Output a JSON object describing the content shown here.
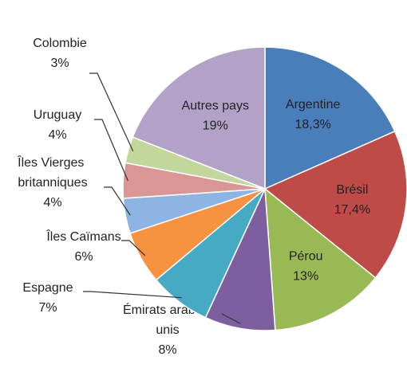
{
  "chart_data": {
    "type": "pie",
    "categories": [
      "Argentine",
      "Brésil",
      "Pérou",
      "Émirats arabes unis",
      "Espagne",
      "Îles Caïmans",
      "Îles Vierges britanniques",
      "Uruguay",
      "Colombie",
      "Autres pays"
    ],
    "values": [
      18.3,
      17.4,
      13,
      8,
      7,
      6,
      4,
      4,
      3,
      19
    ],
    "value_labels": [
      "18,3%",
      "17,4%",
      "13%",
      "8%",
      "7%",
      "6%",
      "4%",
      "4%",
      "3%",
      "19%"
    ],
    "colors": [
      "#4a7ebb",
      "#be4b48",
      "#98b954",
      "#7d5fa0",
      "#46aac5",
      "#f69240",
      "#8eb4e3",
      "#d99694",
      "#c3d69b",
      "#b3a2c7"
    ]
  }
}
